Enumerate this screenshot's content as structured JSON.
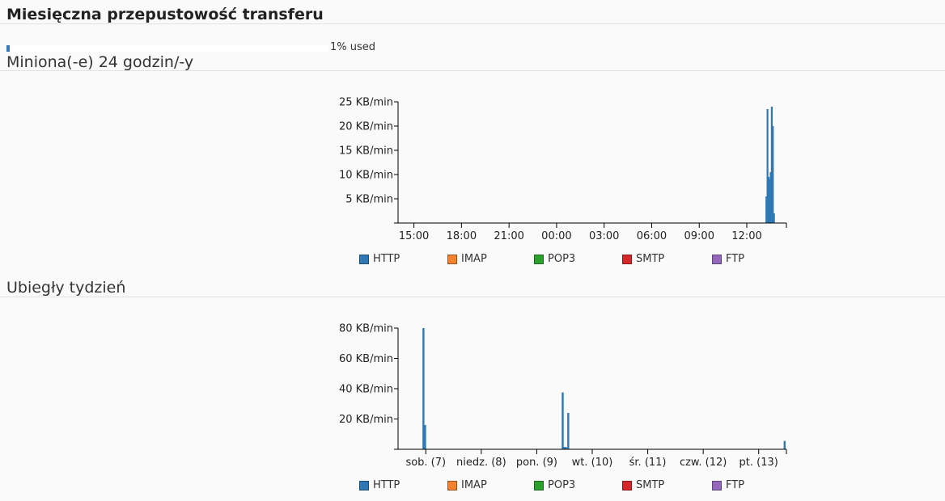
{
  "header": {
    "title": "Miesięczna przepustowość transferu"
  },
  "usage": {
    "label": "1% used",
    "fraction": 0.01
  },
  "legend": {
    "items": [
      {
        "label": "HTTP",
        "color": "#2f78b5"
      },
      {
        "label": "IMAP",
        "color": "#f5822f"
      },
      {
        "label": "POP3",
        "color": "#2ca02c"
      },
      {
        "label": "SMTP",
        "color": "#d62728"
      },
      {
        "label": "FTP",
        "color": "#9467bd"
      }
    ]
  },
  "sections": {
    "day": {
      "title": "Miniona(-e) 24 godzin/-y"
    },
    "week": {
      "title": "Ubiegły tydzień"
    }
  },
  "chart_data": [
    {
      "type": "bar",
      "series": [
        {
          "name": "HTTP",
          "color": "#2f78b5"
        },
        {
          "name": "IMAP",
          "color": "#f5822f"
        },
        {
          "name": "POP3",
          "color": "#2ca02c"
        },
        {
          "name": "SMTP",
          "color": "#d62728"
        },
        {
          "name": "FTP",
          "color": "#9467bd"
        }
      ],
      "xlim": [
        0,
        24.5
      ],
      "ylim": [
        0,
        25
      ],
      "yticks": [
        {
          "value": 5,
          "label": "5 KB/min"
        },
        {
          "value": 10,
          "label": "10 KB/min"
        },
        {
          "value": 15,
          "label": "15 KB/min"
        },
        {
          "value": 20,
          "label": "20 KB/min"
        },
        {
          "value": 25,
          "label": "25 KB/min"
        }
      ],
      "xticks": [
        {
          "value": 1,
          "label": "15:00"
        },
        {
          "value": 4,
          "label": "18:00"
        },
        {
          "value": 7,
          "label": "21:00"
        },
        {
          "value": 10,
          "label": "00:00"
        },
        {
          "value": 13,
          "label": "03:00"
        },
        {
          "value": 16,
          "label": "06:00"
        },
        {
          "value": 19,
          "label": "09:00"
        },
        {
          "value": 22,
          "label": "12:00"
        }
      ],
      "points": [
        {
          "x": 23.18,
          "y": 5.5
        },
        {
          "x": 23.25,
          "y": 23.5
        },
        {
          "x": 23.32,
          "y": 9.5
        },
        {
          "x": 23.38,
          "y": 9.0
        },
        {
          "x": 23.45,
          "y": 10.5
        },
        {
          "x": 23.52,
          "y": 24.0
        },
        {
          "x": 23.59,
          "y": 20.0
        },
        {
          "x": 23.66,
          "y": 2.0
        }
      ]
    },
    {
      "type": "bar",
      "series": [
        {
          "name": "HTTP",
          "color": "#2f78b5"
        },
        {
          "name": "IMAP",
          "color": "#f5822f"
        },
        {
          "name": "POP3",
          "color": "#2ca02c"
        },
        {
          "name": "SMTP",
          "color": "#d62728"
        },
        {
          "name": "FTP",
          "color": "#9467bd"
        }
      ],
      "xlim": [
        0,
        7.0
      ],
      "ylim": [
        0,
        80
      ],
      "yticks": [
        {
          "value": 20,
          "label": "20 KB/min"
        },
        {
          "value": 40,
          "label": "40 KB/min"
        },
        {
          "value": 60,
          "label": "60 KB/min"
        },
        {
          "value": 80,
          "label": "80 KB/min"
        }
      ],
      "xticks": [
        {
          "value": 0.5,
          "label": "sob. (7)"
        },
        {
          "value": 1.5,
          "label": "niedz. (8)"
        },
        {
          "value": 2.5,
          "label": "pon. (9)"
        },
        {
          "value": 3.5,
          "label": "wt. (10)"
        },
        {
          "value": 4.5,
          "label": "śr. (11)"
        },
        {
          "value": 5.5,
          "label": "czw. (12)"
        },
        {
          "value": 6.5,
          "label": "pt. (13)"
        }
      ],
      "points": [
        {
          "x": 0.44,
          "y": 80
        },
        {
          "x": 0.47,
          "y": 16
        },
        {
          "x": 2.95,
          "y": 37.5
        },
        {
          "x": 2.98,
          "y": 1.5
        },
        {
          "x": 3.01,
          "y": 1.5
        },
        {
          "x": 3.05,
          "y": 24
        },
        {
          "x": 6.95,
          "y": 5.5
        }
      ]
    }
  ]
}
